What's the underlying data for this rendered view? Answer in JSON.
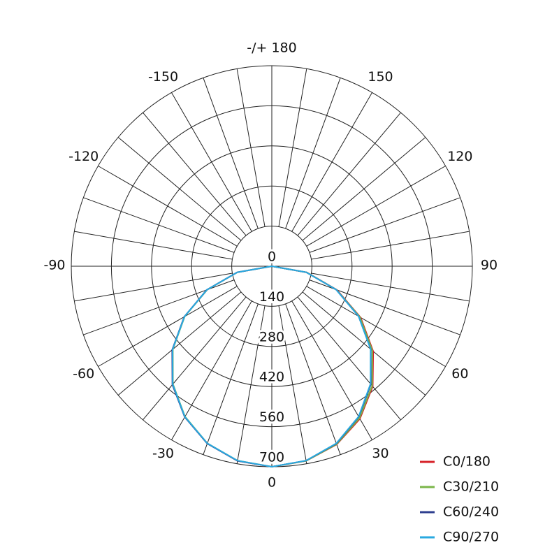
{
  "chart_data": {
    "type": "polar",
    "angles": [
      -90,
      -80,
      -70,
      -60,
      -50,
      -40,
      -30,
      -20,
      -10,
      0,
      10,
      20,
      30,
      40,
      50,
      60,
      70,
      80,
      90
    ],
    "rlim": [
      0,
      700
    ],
    "rticks": [
      0,
      140,
      280,
      420,
      560,
      700
    ],
    "angle_ticks": [
      0,
      30,
      60,
      90,
      120,
      150,
      {
        "value": 180,
        "label": "-/+ 180"
      },
      -150,
      -120,
      -90,
      -60,
      -30
    ],
    "series": [
      {
        "name": "C0/180",
        "color": "#d62027",
        "values": [
          0,
          122,
          240,
          352,
          452,
          538,
          607,
          658,
          690,
          700,
          690,
          662,
          615,
          548,
          462,
          358,
          242,
          124,
          0
        ]
      },
      {
        "name": "C30/210",
        "color": "#7ab648",
        "values": [
          0,
          122,
          240,
          351,
          451,
          537,
          606,
          658,
          689,
          700,
          690,
          661,
          612,
          545,
          458,
          355,
          240,
          123,
          0
        ]
      },
      {
        "name": "C60/240",
        "color": "#2e3f8f",
        "values": [
          0,
          123,
          242,
          353,
          454,
          540,
          608,
          659,
          690,
          700,
          689,
          659,
          607,
          538,
          451,
          350,
          239,
          122,
          0
        ]
      },
      {
        "name": "C90/270",
        "color": "#29a9e0",
        "values": [
          0,
          122,
          241,
          352,
          452,
          538,
          607,
          658,
          689,
          700,
          689,
          658,
          606,
          536,
          450,
          350,
          239,
          122,
          0
        ]
      }
    ]
  }
}
